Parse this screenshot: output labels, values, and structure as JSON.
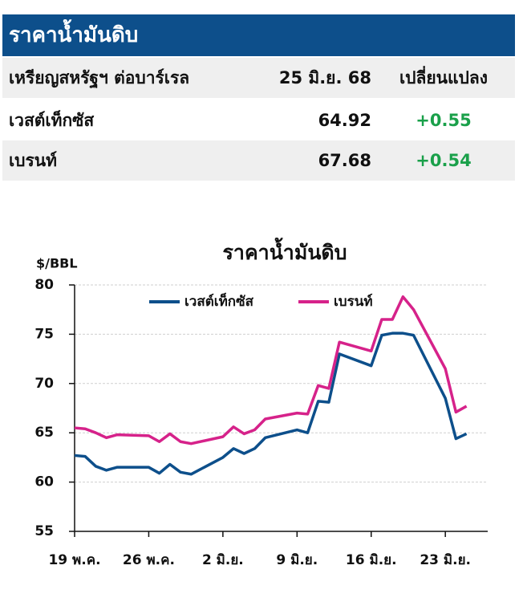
{
  "table": {
    "title": "ราคาน้ำมันดิบ",
    "header": [
      "เหรียญสหรัฐฯ ต่อบาร์เรล",
      "25 มิ.ย. 68",
      "เปลี่ยนแปลง"
    ],
    "rows": [
      [
        "เวสต์เท็กซัส",
        "64.92",
        "+0.55"
      ],
      [
        "เบรนท์",
        "67.68",
        "+0.54"
      ]
    ]
  },
  "chart_data": {
    "type": "line",
    "title": "ราคาน้ำมันดิบ",
    "y_label": "$/BBL",
    "x": [
      0,
      1,
      2,
      3,
      4,
      7,
      8,
      9,
      10,
      11,
      14,
      15,
      16,
      17,
      18,
      21,
      22,
      23,
      24,
      25,
      28,
      29,
      30,
      31,
      32,
      35,
      36,
      37
    ],
    "series": [
      {
        "name": "เวสต์เท็กซัส",
        "color": "#0d4f8b",
        "values": [
          62.7,
          62.6,
          61.6,
          61.2,
          61.5,
          61.5,
          60.9,
          61.8,
          61.0,
          60.8,
          62.5,
          63.4,
          62.9,
          63.4,
          64.5,
          65.3,
          65.0,
          68.2,
          68.1,
          73.0,
          71.8,
          74.9,
          75.1,
          75.1,
          74.9,
          68.5,
          64.4,
          64.9
        ]
      },
      {
        "name": "เบรนท์",
        "color": "#d6228a",
        "values": [
          65.5,
          65.4,
          65.0,
          64.5,
          64.8,
          64.7,
          64.1,
          64.9,
          64.1,
          63.9,
          64.6,
          65.6,
          64.9,
          65.3,
          66.4,
          67.0,
          66.9,
          69.8,
          69.5,
          74.2,
          73.3,
          76.5,
          76.5,
          78.8,
          77.5,
          71.5,
          67.1,
          67.7
        ]
      }
    ],
    "xlim": [
      0,
      39
    ],
    "xticks": [
      {
        "value": 0,
        "label": "19 พ.ค."
      },
      {
        "value": 7,
        "label": "26 พ.ค."
      },
      {
        "value": 14,
        "label": "2 มิ.ย."
      },
      {
        "value": 21,
        "label": "9 มิ.ย."
      },
      {
        "value": 28,
        "label": "16 มิ.ย."
      },
      {
        "value": 35,
        "label": "23 มิ.ย."
      }
    ],
    "ylim": [
      55,
      80
    ],
    "yticks": [
      55,
      60,
      65,
      70,
      75,
      80
    ],
    "grid": true,
    "legend": "top"
  }
}
